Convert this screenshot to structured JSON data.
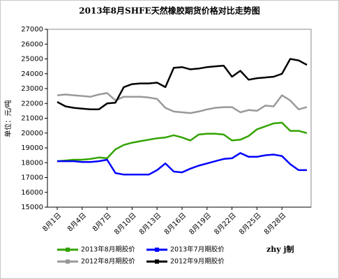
{
  "chart_data": {
    "type": "line",
    "title": "2013年8月SHFE天然橡胶期货价格对比走势图",
    "y_label": "单位：元/吨",
    "credit": "zhy j制",
    "categories": [
      "8月1日",
      null,
      null,
      "8月4日",
      null,
      null,
      "8月7日",
      null,
      null,
      "8月10日",
      null,
      null,
      "8月13日",
      null,
      null,
      "8月16日",
      null,
      null,
      "8月19日",
      null,
      null,
      "8月22日",
      null,
      null,
      "8月25日",
      null,
      null,
      "8月28日",
      null,
      null,
      null
    ],
    "ylim": [
      15000,
      27000
    ],
    "yticks": [
      15000,
      16000,
      17000,
      18000,
      19000,
      20000,
      21000,
      22000,
      23000,
      24000,
      25000,
      26000,
      27000
    ],
    "grid": false,
    "legend": "bottom",
    "series": [
      {
        "name": "2013年8月期胶价",
        "color": "#33a300",
        "values": [
          18100,
          18150,
          18200,
          18200,
          18250,
          18350,
          18300,
          18900,
          19200,
          19350,
          19450,
          19550,
          19650,
          19700,
          19850,
          19700,
          19500,
          19900,
          19950,
          19950,
          19900,
          19500,
          19550,
          19800,
          20250,
          20450,
          20650,
          20700,
          20150,
          20150,
          20000
        ]
      },
      {
        "name": "2013年7月期胶价",
        "color": "#0000ff",
        "values": [
          18100,
          18100,
          18100,
          18050,
          18050,
          18100,
          18200,
          17300,
          17200,
          17200,
          17200,
          17200,
          17500,
          17950,
          17400,
          17350,
          17600,
          17800,
          17950,
          18100,
          18250,
          18300,
          18650,
          18400,
          18400,
          18500,
          18550,
          18450,
          17900,
          17500,
          17500
        ]
      },
      {
        "name": "2012年8月期胶价",
        "color": "#999999",
        "values": [
          22550,
          22600,
          22550,
          22500,
          22450,
          22600,
          22700,
          22200,
          22450,
          22450,
          22450,
          22400,
          22300,
          21700,
          21450,
          21400,
          21350,
          21450,
          21600,
          21700,
          21750,
          21750,
          21400,
          21550,
          21500,
          21850,
          21800,
          22550,
          22200,
          21600,
          21750
        ]
      },
      {
        "name": "2012年9月期胶价",
        "color": "#000000",
        "values": [
          22100,
          21800,
          21700,
          21650,
          21600,
          21600,
          22000,
          22050,
          23100,
          23300,
          23350,
          23350,
          23400,
          23100,
          24400,
          24450,
          24300,
          24350,
          24450,
          24500,
          24550,
          23800,
          24200,
          23600,
          23700,
          23750,
          23800,
          24000,
          25000,
          24900,
          24600
        ]
      }
    ]
  }
}
